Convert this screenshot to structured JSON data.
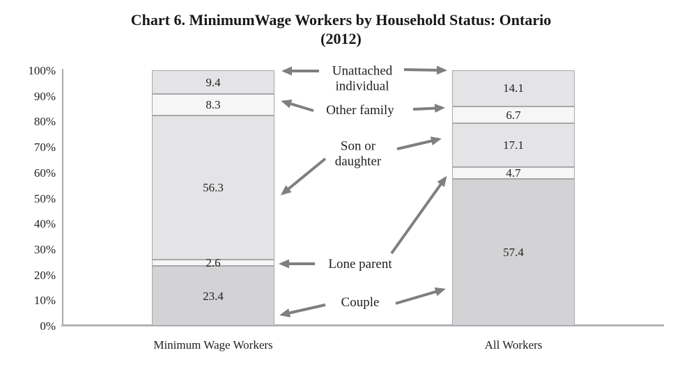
{
  "title": {
    "line1": "Chart 6. MinimumWage Workers by Household Status: Ontario",
    "line2": "(2012)"
  },
  "chart_data": {
    "type": "bar",
    "stacked": true,
    "title": "Chart 6. MinimumWage Workers by Household Status: Ontario (2012)",
    "categories": [
      "Minimum Wage Workers",
      "All Workers"
    ],
    "stack_order": "bottom-to-top",
    "series": [
      {
        "name": "Couple",
        "values": [
          23.4,
          57.4
        ],
        "color": "#d3d3d5"
      },
      {
        "name": "Lone parent",
        "values": [
          2.6,
          4.7
        ],
        "color": "#f6f6f7"
      },
      {
        "name": "Son or daughter",
        "values": [
          56.3,
          17.1
        ],
        "color": "#e4e4e6"
      },
      {
        "name": "Other family",
        "values": [
          8.3,
          6.7
        ],
        "color": "#f6f6f7"
      },
      {
        "name": "Unattached individual",
        "values": [
          9.4,
          14.1
        ],
        "color": "#e4e4e6"
      }
    ],
    "ylim": [
      0,
      100
    ],
    "yticks": [
      "100%",
      "90%",
      "80%",
      "70%",
      "60%",
      "50%",
      "40%",
      "30%",
      "20%",
      "10%",
      "0%"
    ],
    "grid": false,
    "legend_position": "center annotations with arrows"
  },
  "annotations": {
    "unattached": "Unattached individual",
    "other_family": "Other family",
    "son_daughter": "Son or daughter",
    "lone_parent": "Lone parent",
    "couple": "Couple"
  },
  "colors": {
    "segment_dark": "#d3d3d5",
    "segment_light": "#e4e4e6",
    "segment_white": "#f6f6f7",
    "segment_border": "#a7a7aa",
    "axis_line": "#b0b0b3",
    "arrow": "#7f7f82",
    "text": "#1f1f1f"
  }
}
